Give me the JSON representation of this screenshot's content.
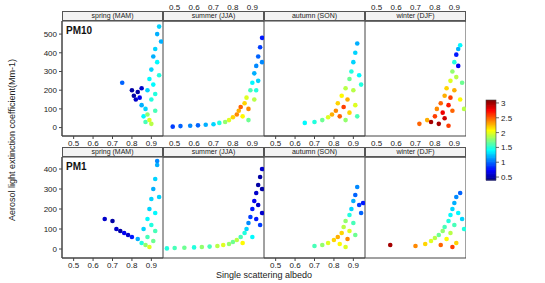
{
  "chart_data": {
    "type": "scatter",
    "x_label": "Single scattering albedo",
    "y_label": "Aerosol light extinction coefficient(Mm-1)",
    "xlim": [
      0.44,
      0.96
    ],
    "xticks": [
      0.5,
      0.6,
      0.7,
      0.8,
      0.9
    ],
    "color_range": [
      0.4,
      3.1
    ],
    "color_ticks": [
      0.5,
      1,
      1.5,
      2,
      2.5,
      3
    ],
    "rows": [
      {
        "label": "PM10",
        "ylim": [
          -45,
          570
        ],
        "yticks": [
          0,
          100,
          200,
          300,
          400,
          500
        ],
        "panels": [
          {
            "title": "spring (MAM)",
            "x": [
              0.75,
              0.8,
              0.81,
              0.82,
              0.83,
              0.84,
              0.85,
              0.86,
              0.87,
              0.87,
              0.88,
              0.88,
              0.89,
              0.89,
              0.9,
              0.9,
              0.91,
              0.91,
              0.92,
              0.92,
              0.93,
              0.93,
              0.94,
              0.94,
              0.95,
              0.9,
              0.92,
              0.85
            ],
            "y": [
              240,
              200,
              170,
              150,
              190,
              160,
              120,
              60,
              30,
              100,
              200,
              70,
              260,
              40,
              310,
              150,
              380,
              230,
              420,
              90,
              500,
              350,
              540,
              280,
              460,
              20,
              180,
              210
            ],
            "c": [
              1.0,
              0.5,
              0.5,
              0.6,
              0.5,
              0.7,
              1.2,
              1.4,
              1.6,
              1.3,
              1.3,
              1.8,
              1.4,
              2.0,
              1.3,
              1.5,
              1.2,
              1.4,
              1.3,
              1.6,
              1.2,
              1.4,
              1.3,
              1.5,
              1.2,
              1.9,
              1.5,
              0.6
            ]
          },
          {
            "title": "summer (JJA)",
            "x": [
              0.49,
              0.53,
              0.58,
              0.62,
              0.66,
              0.7,
              0.73,
              0.76,
              0.78,
              0.8,
              0.82,
              0.83,
              0.84,
              0.85,
              0.86,
              0.87,
              0.88,
              0.89,
              0.9,
              0.91,
              0.91,
              0.92,
              0.93,
              0.93,
              0.94,
              0.95,
              0.95,
              0.92,
              0.88
            ],
            "y": [
              5,
              8,
              10,
              12,
              15,
              18,
              25,
              30,
              40,
              55,
              70,
              90,
              110,
              60,
              130,
              160,
              100,
              200,
              240,
              150,
              290,
              330,
              380,
              250,
              430,
              480,
              350,
              200,
              40
            ],
            "c": [
              0.9,
              1.0,
              1.1,
              1.0,
              1.2,
              1.3,
              1.5,
              1.8,
              2.0,
              2.2,
              2.4,
              2.3,
              2.5,
              2.1,
              2.2,
              2.0,
              2.4,
              1.6,
              1.4,
              1.9,
              1.2,
              1.1,
              1.0,
              1.3,
              0.9,
              0.8,
              1.1,
              1.5,
              1.7
            ]
          },
          {
            "title": "autumn (SON)",
            "x": [
              0.65,
              0.7,
              0.74,
              0.77,
              0.79,
              0.81,
              0.82,
              0.83,
              0.84,
              0.85,
              0.86,
              0.87,
              0.88,
              0.88,
              0.89,
              0.9,
              0.9,
              0.91,
              0.92,
              0.91,
              0.93,
              0.94,
              0.86,
              0.92
            ],
            "y": [
              25,
              30,
              40,
              55,
              70,
              90,
              130,
              60,
              170,
              110,
              210,
              150,
              260,
              80,
              300,
              200,
              350,
              400,
              450,
              120,
              280,
              230,
              40,
              60
            ],
            "c": [
              1.4,
              1.5,
              1.7,
              2.0,
              2.3,
              2.4,
              2.2,
              2.5,
              2.1,
              2.6,
              1.9,
              2.3,
              1.7,
              2.2,
              1.5,
              1.9,
              1.3,
              1.3,
              1.2,
              2.0,
              1.4,
              1.5,
              1.8,
              1.6
            ]
          },
          {
            "title": "winter (DJF)",
            "x": [
              0.72,
              0.76,
              0.78,
              0.8,
              0.81,
              0.82,
              0.83,
              0.84,
              0.85,
              0.85,
              0.86,
              0.87,
              0.88,
              0.88,
              0.89,
              0.89,
              0.9,
              0.9,
              0.91,
              0.91,
              0.92,
              0.92,
              0.93,
              0.93,
              0.94,
              0.95,
              0.87
            ],
            "y": [
              20,
              40,
              30,
              60,
              100,
              20,
              130,
              80,
              170,
              50,
              210,
              120,
              250,
              160,
              300,
              90,
              200,
              350,
              390,
              270,
              420,
              330,
              440,
              150,
              240,
              100,
              10
            ],
            "c": [
              2.5,
              2.3,
              3.0,
              2.6,
              2.4,
              3.0,
              2.5,
              2.8,
              2.3,
              2.9,
              2.2,
              2.7,
              2.0,
              2.6,
              1.8,
              2.5,
              2.3,
              1.5,
              0.8,
              1.9,
              1.2,
              0.7,
              1.4,
              2.1,
              1.7,
              1.9,
              2.6
            ]
          }
        ]
      },
      {
        "label": "PM1",
        "ylim": [
          -45,
          460
        ],
        "yticks": [
          0,
          100,
          200,
          300,
          400
        ],
        "panels": [
          {
            "title": "spring (MAM)",
            "x": [
              0.66,
              0.7,
              0.72,
              0.74,
              0.76,
              0.78,
              0.8,
              0.83,
              0.85,
              0.86,
              0.87,
              0.88,
              0.88,
              0.89,
              0.89,
              0.9,
              0.9,
              0.91,
              0.91,
              0.92,
              0.92,
              0.93,
              0.93,
              0.94,
              0.92
            ],
            "y": [
              150,
              140,
              100,
              90,
              80,
              70,
              60,
              50,
              30,
              100,
              20,
              150,
              60,
              200,
              10,
              250,
              120,
              300,
              40,
              350,
              180,
              420,
              440,
              260,
              90
            ],
            "c": [
              0.6,
              0.5,
              0.6,
              0.5,
              0.7,
              0.6,
              0.8,
              1.2,
              1.5,
              1.3,
              1.8,
              1.4,
              1.6,
              1.3,
              2.0,
              1.3,
              1.5,
              1.2,
              1.7,
              1.3,
              1.4,
              1.2,
              1.1,
              1.3,
              1.6
            ]
          },
          {
            "title": "summer (JJA)",
            "x": [
              0.46,
              0.5,
              0.55,
              0.6,
              0.64,
              0.68,
              0.72,
              0.75,
              0.78,
              0.8,
              0.82,
              0.84,
              0.85,
              0.86,
              0.87,
              0.88,
              0.89,
              0.9,
              0.9,
              0.91,
              0.92,
              0.92,
              0.93,
              0.93,
              0.94,
              0.95,
              0.95,
              0.94,
              0.95
            ],
            "y": [
              3,
              5,
              6,
              8,
              10,
              12,
              15,
              20,
              25,
              35,
              45,
              60,
              30,
              80,
              100,
              130,
              160,
              200,
              60,
              240,
              280,
              150,
              320,
              220,
              360,
              400,
              300,
              120,
              180
            ],
            "c": [
              1.5,
              1.6,
              1.7,
              1.5,
              1.8,
              1.6,
              1.9,
              2.0,
              1.8,
              1.7,
              1.9,
              1.6,
              2.1,
              1.5,
              1.3,
              1.1,
              0.9,
              0.8,
              1.4,
              0.7,
              0.6,
              0.8,
              0.5,
              0.6,
              0.5,
              0.6,
              0.5,
              0.9,
              0.6
            ]
          },
          {
            "title": "autumn (SON)",
            "x": [
              0.7,
              0.74,
              0.77,
              0.8,
              0.82,
              0.83,
              0.84,
              0.85,
              0.86,
              0.87,
              0.88,
              0.88,
              0.89,
              0.9,
              0.9,
              0.91,
              0.92,
              0.93,
              0.94,
              0.95,
              0.91,
              0.86
            ],
            "y": [
              15,
              20,
              30,
              45,
              60,
              25,
              80,
              110,
              140,
              50,
              170,
              90,
              200,
              240,
              130,
              270,
              310,
              220,
              180,
              230,
              70,
              10
            ],
            "c": [
              1.6,
              1.8,
              2.0,
              2.2,
              2.3,
              2.1,
              2.2,
              1.9,
              1.8,
              2.4,
              1.5,
              2.0,
              1.3,
              1.2,
              1.6,
              1.0,
              1.1,
              0.9,
              1.0,
              0.8,
              1.7,
              2.0
            ]
          },
          {
            "title": "winter (DJF)",
            "x": [
              0.57,
              0.7,
              0.75,
              0.78,
              0.8,
              0.82,
              0.83,
              0.84,
              0.85,
              0.86,
              0.87,
              0.88,
              0.88,
              0.89,
              0.9,
              0.9,
              0.91,
              0.91,
              0.92,
              0.93,
              0.94,
              0.95,
              0.89
            ],
            "y": [
              20,
              15,
              25,
              40,
              55,
              70,
              20,
              90,
              110,
              50,
              140,
              80,
              170,
              200,
              120,
              230,
              260,
              30,
              180,
              280,
              150,
              100,
              10
            ],
            "c": [
              3.0,
              2.4,
              2.2,
              2.0,
              1.9,
              1.7,
              2.5,
              1.8,
              1.6,
              2.1,
              1.5,
              1.9,
              1.4,
              1.3,
              1.6,
              1.2,
              1.1,
              2.2,
              1.4,
              1.0,
              1.3,
              1.5,
              2.6
            ]
          }
        ]
      }
    ]
  }
}
